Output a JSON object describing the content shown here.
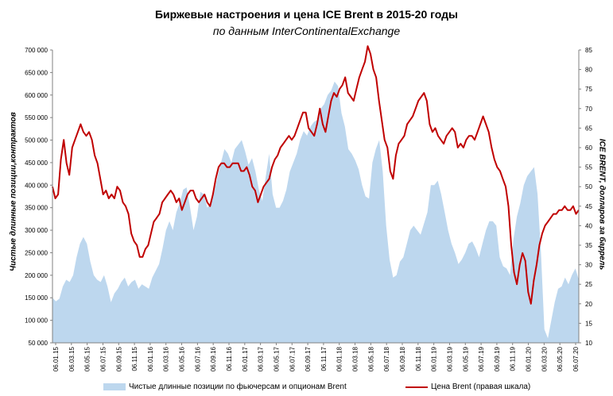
{
  "chart_data": {
    "type": "area+line",
    "title": "Биржевые настроения  и цена ICE Brent в 2015-20 годы",
    "subtitle": "по данным InterContinentalExchange",
    "ylabel_left": "Чистые длинные позиции,контрактов",
    "ylabel_right": "ICE BRENT, долларов за баррель",
    "ylim_left": [
      50000,
      700000
    ],
    "ylim_right": [
      10,
      85
    ],
    "yticks_left": [
      "50 000",
      "100 000",
      "150 000",
      "200 000",
      "250 000",
      "300 000",
      "350 000",
      "400 000",
      "450 000",
      "500 000",
      "550 000",
      "600 000",
      "650 000",
      "700 000"
    ],
    "yticks_right": [
      "10",
      "15",
      "20",
      "25",
      "30",
      "35",
      "40",
      "45",
      "50",
      "55",
      "60",
      "65",
      "70",
      "75",
      "80",
      "85"
    ],
    "x_ticks": [
      "06.01.15",
      "06.03.15",
      "06.05.15",
      "06.07.15",
      "06.09.15",
      "06.11.15",
      "06.01.16",
      "06.03.16",
      "06.05.16",
      "06.07.16",
      "06.09.16",
      "06.11.16",
      "06.01.17",
      "06.03.17",
      "06.05.17",
      "06.07.17",
      "06.09.17",
      "06.11.17",
      "06.01.18",
      "06.03.18",
      "06.05.18",
      "06.07.18",
      "06.09.18",
      "06.11.18",
      "06.01.19",
      "06.03.19",
      "06.05.19",
      "06.07.19",
      "06.09.19",
      "06.11.19",
      "06.01.20",
      "06.03.20",
      "06.05.20",
      "06.07.20"
    ],
    "series": [
      {
        "name": "Чистые длинные позиции по фьючерсам и опционам Brent",
        "axis": "left",
        "color": "#bdd7ee",
        "values": [
          150000,
          142000,
          148000,
          175000,
          190000,
          185000,
          200000,
          240000,
          270000,
          285000,
          270000,
          230000,
          200000,
          190000,
          185000,
          200000,
          175000,
          140000,
          160000,
          170000,
          185000,
          195000,
          175000,
          185000,
          190000,
          170000,
          180000,
          175000,
          170000,
          195000,
          210000,
          225000,
          260000,
          300000,
          320000,
          300000,
          340000,
          360000,
          390000,
          395000,
          350000,
          300000,
          330000,
          385000,
          380000,
          350000,
          360000,
          385000,
          420000,
          450000,
          480000,
          470000,
          450000,
          480000,
          490000,
          500000,
          475000,
          445000,
          460000,
          430000,
          390000,
          365000,
          420000,
          470000,
          380000,
          350000,
          350000,
          365000,
          390000,
          430000,
          450000,
          470000,
          500000,
          520000,
          510000,
          530000,
          540000,
          545000,
          570000,
          580000,
          600000,
          610000,
          630000,
          620000,
          560000,
          530000,
          480000,
          470000,
          455000,
          435000,
          400000,
          375000,
          370000,
          450000,
          480000,
          500000,
          430000,
          310000,
          235000,
          195000,
          200000,
          230000,
          240000,
          270000,
          300000,
          310000,
          300000,
          290000,
          315000,
          340000,
          400000,
          400000,
          410000,
          380000,
          340000,
          300000,
          270000,
          250000,
          225000,
          235000,
          250000,
          270000,
          275000,
          260000,
          240000,
          270000,
          300000,
          320000,
          320000,
          310000,
          240000,
          220000,
          215000,
          200000,
          280000,
          330000,
          360000,
          400000,
          420000,
          430000,
          440000,
          380000,
          250000,
          80000,
          60000,
          100000,
          140000,
          170000,
          175000,
          195000,
          180000,
          200000,
          215000,
          190000
        ]
      },
      {
        "name": "Цена Brent (правая шкала)",
        "axis": "right",
        "color": "#c00000",
        "values": [
          50,
          47,
          48,
          57,
          62,
          56,
          53,
          60,
          62,
          64,
          66,
          64,
          63,
          64,
          62,
          58,
          56,
          52,
          48,
          49,
          47,
          48,
          47,
          50,
          49,
          46,
          45,
          43,
          38,
          36,
          35,
          32,
          32,
          34,
          35,
          38,
          41,
          42,
          43,
          46,
          47,
          48,
          49,
          48,
          46,
          47,
          44,
          46,
          48,
          49,
          49,
          47,
          46,
          47,
          48,
          46,
          45,
          48,
          52,
          55,
          56,
          56,
          55,
          55,
          56,
          56,
          56,
          54,
          54,
          55,
          53,
          50,
          49,
          46,
          48,
          50,
          51,
          52,
          55,
          57,
          58,
          60,
          61,
          62,
          63,
          62,
          63,
          65,
          67,
          69,
          69,
          65,
          64,
          63,
          66,
          70,
          66,
          64,
          68,
          72,
          74,
          73,
          75,
          76,
          78,
          74,
          73,
          72,
          75,
          78,
          80,
          82,
          86,
          84,
          80,
          78,
          72,
          67,
          62,
          60,
          54,
          52,
          58,
          61,
          62,
          63,
          66,
          67,
          68,
          70,
          72,
          73,
          74,
          72,
          66,
          64,
          65,
          63,
          62,
          61,
          63,
          64,
          65,
          64,
          60,
          61,
          60,
          62,
          63,
          63,
          62,
          64,
          66,
          68,
          66,
          64,
          60,
          57,
          55,
          54,
          52,
          50,
          45,
          35,
          28,
          25,
          30,
          33,
          31,
          23,
          20,
          26,
          30,
          35,
          38,
          40,
          41,
          42,
          43,
          43,
          44,
          44,
          45,
          44,
          44,
          45,
          43,
          44
        ]
      }
    ],
    "legend_position": "bottom",
    "grid": false
  }
}
